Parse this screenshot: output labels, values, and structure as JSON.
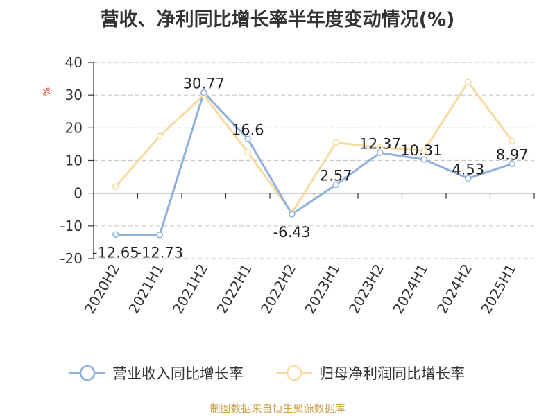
{
  "chart_data": {
    "type": "line",
    "title": "营收、净利同比增长率半年度变动情况(%)",
    "ylabel": "%",
    "xlabel": "",
    "categories": [
      "2020H2",
      "2021H1",
      "2021H2",
      "2022H1",
      "2022H2",
      "2023H1",
      "2023H2",
      "2024H1",
      "2024H2",
      "2025H1"
    ],
    "ylim": [
      -20,
      40
    ],
    "yticks": [
      -20,
      -10,
      0,
      10,
      20,
      30,
      40
    ],
    "grid": true,
    "legend_position": "bottom",
    "series": [
      {
        "name": "营业收入同比增长率",
        "color": "#8eb0dc",
        "values": [
          -12.65,
          -12.73,
          30.77,
          16.6,
          -6.43,
          2.57,
          12.37,
          10.31,
          4.53,
          8.97
        ],
        "labels": [
          "-12.65",
          "-12.73",
          "30.77",
          "16.6",
          "-6.43",
          "2.57",
          "12.37",
          "10.31",
          "4.53",
          "8.97"
        ]
      },
      {
        "name": "归母净利润同比增长率",
        "color": "#f8d9a0",
        "values": [
          2.0,
          17.5,
          30.0,
          12.5,
          -6.0,
          15.5,
          14.0,
          13.0,
          34.0,
          16.0
        ]
      }
    ]
  },
  "legend": {
    "revenue": "营业收入同比增长率",
    "profit": "归母净利润同比增长率"
  },
  "footer": {
    "source": "制图数据来自恒生聚源数据库"
  }
}
